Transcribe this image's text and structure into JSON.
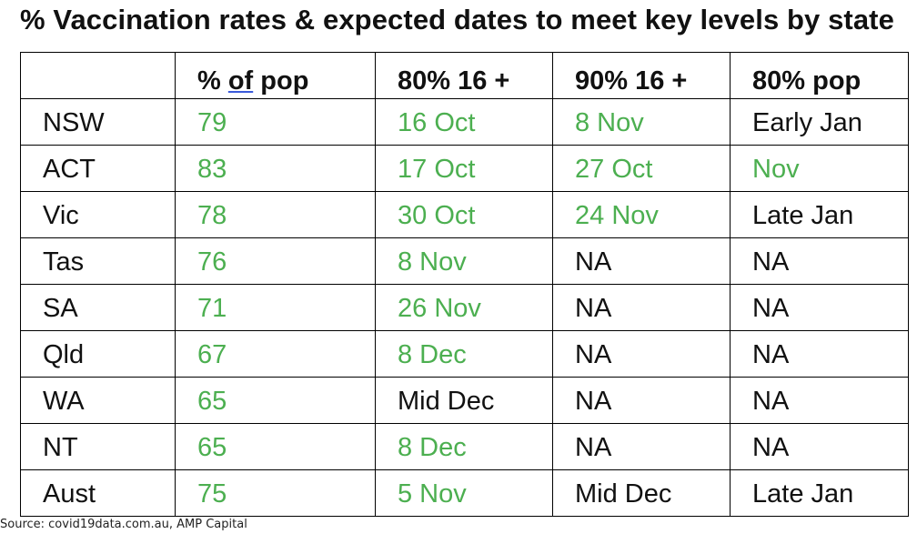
{
  "title": "% Vaccination rates & expected dates to meet key levels by state",
  "source": "Source: covid19data.com.au, AMP Capital",
  "colors": {
    "highlight": "#4caf50",
    "text": "#111111",
    "border": "#000000"
  },
  "chart_data": {
    "type": "table",
    "title": "% Vaccination rates & expected dates to meet key levels by state",
    "header": {
      "blank": "",
      "pct_pre": "% ",
      "pct_of": "of",
      "pct_post": " pop",
      "h80_16": "80% 16 +",
      "h90_16": "90% 16 +",
      "h80_pop": "80% pop"
    },
    "columns": [
      "",
      "% of pop",
      "80% 16 +",
      "90% 16 +",
      "80% pop"
    ],
    "rows": [
      {
        "state": "NSW",
        "pct": "79",
        "d80_16": "16 Oct",
        "d90_16": "8 Nov",
        "d80_pop": "Early Jan",
        "hl": [
          true,
          true,
          true,
          false
        ]
      },
      {
        "state": "ACT",
        "pct": "83",
        "d80_16": "17 Oct",
        "d90_16": "27 Oct",
        "d80_pop": "Nov",
        "hl": [
          true,
          true,
          true,
          true
        ]
      },
      {
        "state": "Vic",
        "pct": "78",
        "d80_16": "30 Oct",
        "d90_16": "24 Nov",
        "d80_pop": "Late Jan",
        "hl": [
          true,
          true,
          true,
          false
        ]
      },
      {
        "state": "Tas",
        "pct": "76",
        "d80_16": "8 Nov",
        "d90_16": "NA",
        "d80_pop": "NA",
        "hl": [
          true,
          true,
          false,
          false
        ]
      },
      {
        "state": "SA",
        "pct": "71",
        "d80_16": "26 Nov",
        "d90_16": "NA",
        "d80_pop": "NA",
        "hl": [
          true,
          true,
          false,
          false
        ]
      },
      {
        "state": "Qld",
        "pct": "67",
        "d80_16": "8 Dec",
        "d90_16": "NA",
        "d80_pop": "NA",
        "hl": [
          true,
          true,
          false,
          false
        ]
      },
      {
        "state": "WA",
        "pct": "65",
        "d80_16": "Mid Dec",
        "d90_16": "NA",
        "d80_pop": "NA",
        "hl": [
          true,
          false,
          false,
          false
        ]
      },
      {
        "state": "NT",
        "pct": "65",
        "d80_16": "8 Dec",
        "d90_16": "NA",
        "d80_pop": "NA",
        "hl": [
          true,
          true,
          false,
          false
        ]
      },
      {
        "state": "Aust",
        "pct": "75",
        "d80_16": "5 Nov",
        "d90_16": "Mid Dec",
        "d80_pop": "Late Jan",
        "hl": [
          true,
          true,
          false,
          false
        ]
      }
    ]
  }
}
